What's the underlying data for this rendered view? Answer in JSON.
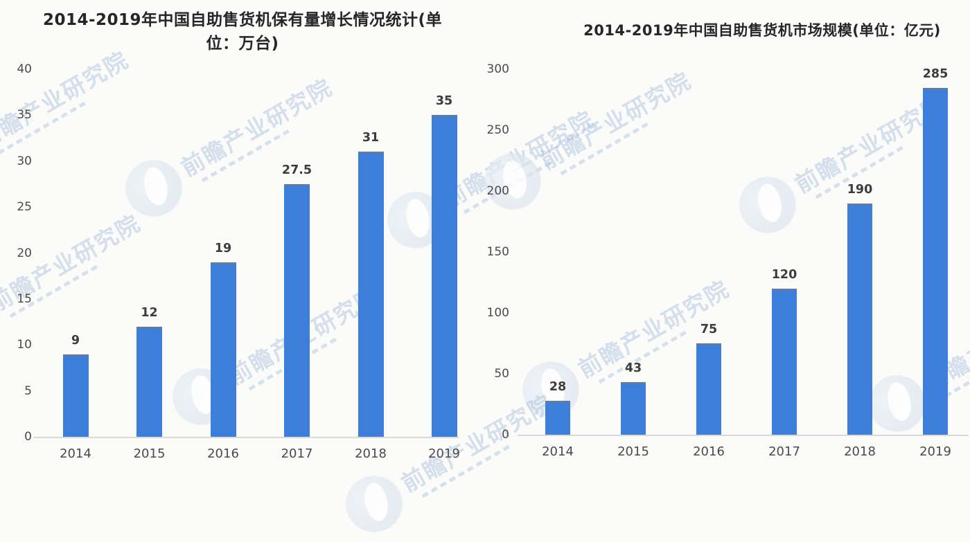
{
  "watermark": {
    "text": "前瞻产业研究院",
    "color": "#a7c0d9"
  },
  "colors": {
    "bar": "#3d7edb",
    "bar_cap": "#6e7c8a",
    "axis_line": "#dadada",
    "tick_label": "#4a4a4a",
    "value_label": "#3c3c3c",
    "title": "#262626",
    "background": "#fbfbfa"
  },
  "chart_data": [
    {
      "type": "bar",
      "title": "2014-2019年中国自助售货机保有量增长情况统计(单位：万台)",
      "categories": [
        "2014",
        "2015",
        "2016",
        "2017",
        "2018",
        "2019"
      ],
      "values": [
        9,
        12,
        19,
        27.5,
        31,
        35
      ],
      "y_ticks": [
        0,
        5,
        10,
        15,
        20,
        25,
        30,
        35,
        40
      ],
      "ylim": [
        0,
        40
      ],
      "xlabel": "",
      "ylabel": "",
      "grid": false,
      "legend": false,
      "bar_color": "#3d7edb",
      "value_labels_shown": true
    },
    {
      "type": "bar",
      "title": "2014-2019年中国自助售货机市场规模(单位：亿元)",
      "categories": [
        "2014",
        "2015",
        "2016",
        "2017",
        "2018",
        "2019"
      ],
      "values": [
        28,
        43,
        75,
        120,
        190,
        285
      ],
      "y_ticks": [
        0,
        50,
        100,
        150,
        200,
        250,
        300
      ],
      "ylim": [
        0,
        300
      ],
      "xlabel": "",
      "ylabel": "",
      "grid": false,
      "legend": false,
      "bar_color": "#3d7edb",
      "value_labels_shown": true
    }
  ]
}
